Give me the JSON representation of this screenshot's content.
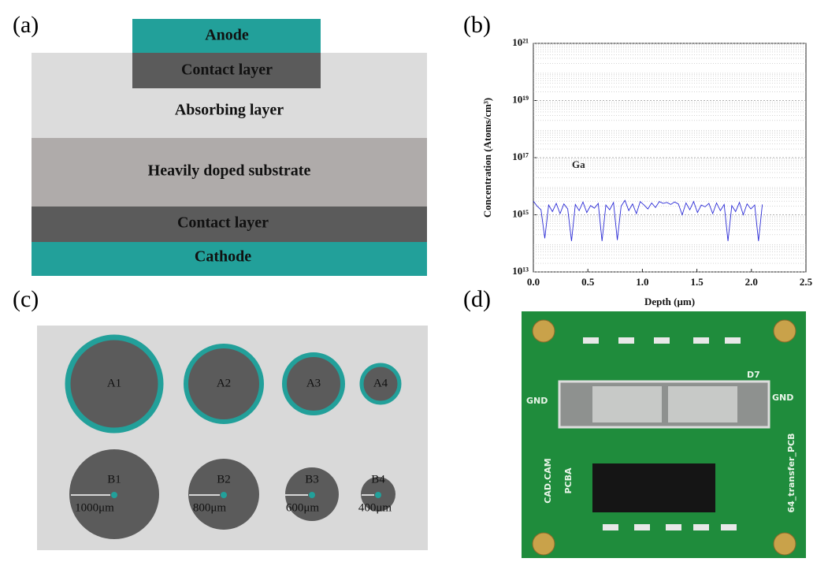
{
  "panel_labels": [
    "(a)",
    "(b)",
    "(c)",
    "(d)"
  ],
  "panel_a": {
    "layers": [
      "Anode",
      "Contact layer",
      "Absorbing layer",
      "Heavily doped substrate",
      "Contact layer",
      "Cathode"
    ]
  },
  "chart_data": {
    "type": "line",
    "x_label": "Depth (μm)",
    "y_label": "Concentration (Atoms/cm³)",
    "log_y": true,
    "grid": true,
    "x": [
      0,
      0.035,
      0.07,
      0.105,
      0.14,
      0.175,
      0.21,
      0.245,
      0.28,
      0.315,
      0.35,
      0.385,
      0.42,
      0.455,
      0.49,
      0.525,
      0.56,
      0.595,
      0.63,
      0.665,
      0.7,
      0.735,
      0.77,
      0.805,
      0.84,
      0.875,
      0.91,
      0.945,
      0.98,
      1.015,
      1.05,
      1.085,
      1.12,
      1.155,
      1.19,
      1.225,
      1.26,
      1.295,
      1.33,
      1.365,
      1.4,
      1.435,
      1.47,
      1.505,
      1.54,
      1.575,
      1.61,
      1.645,
      1.68,
      1.715,
      1.75,
      1.785,
      1.82,
      1.855,
      1.89,
      1.925,
      1.96,
      1.995,
      2.03,
      2.065,
      2.1
    ],
    "series": [
      {
        "name": "Ga",
        "color": "#2b2bd6",
        "values": [
          3000000000000000.0,
          2000000000000000.0,
          1500000000000000.0,
          150000000000000.0,
          2200000000000000.0,
          1300000000000000.0,
          2500000000000000.0,
          1100000000000000.0,
          2400000000000000.0,
          1600000000000000.0,
          120000000000000.0,
          2300000000000000.0,
          1400000000000000.0,
          2800000000000000.0,
          1200000000000000.0,
          2100000000000000.0,
          1700000000000000.0,
          2500000000000000.0,
          120000000000000.0,
          2200000000000000.0,
          1500000000000000.0,
          2700000000000000.0,
          130000000000000.0,
          2000000000000000.0,
          3200000000000000.0,
          1400000000000000.0,
          2400000000000000.0,
          1100000000000000.0,
          2900000000000000.0,
          2200000000000000.0,
          1600000000000000.0,
          2600000000000000.0,
          1800000000000000.0,
          2900000000000000.0,
          2500000000000000.0,
          2700000000000000.0,
          2300000000000000.0,
          2800000000000000.0,
          2400000000000000.0,
          1000000000000000.0,
          2600000000000000.0,
          1500000000000000.0,
          2900000000000000.0,
          1200000000000000.0,
          2200000000000000.0,
          1900000000000000.0,
          2500000000000000.0,
          1100000000000000.0,
          2600000000000000.0,
          1400000000000000.0,
          2300000000000000.0,
          120000000000000.0,
          2100000000000000.0,
          1300000000000000.0,
          2700000000000000.0,
          1000000000000000.0,
          2400000000000000.0,
          1600000000000000.0,
          2200000000000000.0,
          120000000000000.0,
          2300000000000000.0
        ]
      }
    ],
    "xlim": [
      0,
      2.5
    ],
    "xticks": [
      {
        "value": 0,
        "label": "0.0"
      },
      0.5,
      {
        "value": 1,
        "label": "1.0"
      },
      1.5,
      {
        "value": 2,
        "label": "2.0"
      },
      2.5
    ],
    "ylim": [
      10000000000000.0,
      1e+21
    ],
    "yticks": [
      {
        "value": 10000000000000.0,
        "label": "10¹³"
      },
      {
        "value": 1000000000000000.0,
        "label": "10¹⁵"
      },
      {
        "value": 1e+17,
        "label": "10¹⁷"
      },
      {
        "value": 1e+19,
        "label": "10¹⁹"
      },
      {
        "value": 1e+21,
        "label": "10²¹"
      }
    ]
  },
  "panel_c": {
    "circles_a": [
      "A1",
      "A2",
      "A3",
      "A4"
    ],
    "circles_b": [
      "B1",
      "B2",
      "B3",
      "B4"
    ],
    "dimensions": [
      "1000μm",
      "800μm",
      "600μm",
      "400μm"
    ]
  },
  "panel_d": {
    "board_labels": [
      "GND",
      "GND",
      "64_transfer_PCB",
      "PCBA",
      "CAD.CAM",
      "D7"
    ]
  }
}
